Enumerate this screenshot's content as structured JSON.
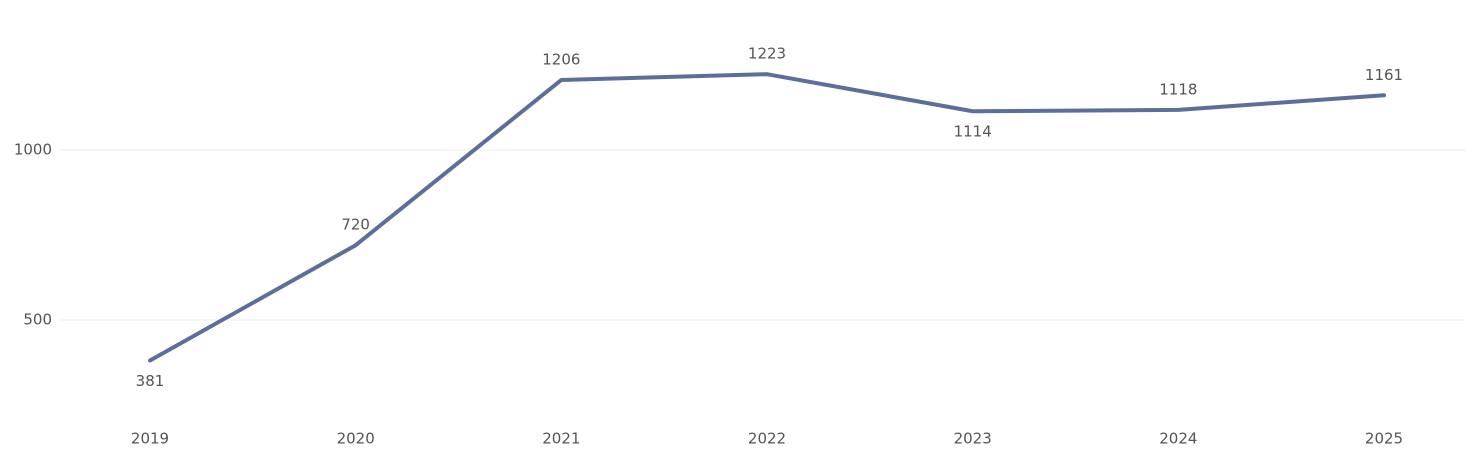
{
  "chart_data": {
    "type": "line",
    "categories": [
      "2019",
      "2020",
      "2021",
      "2022",
      "2023",
      "2024",
      "2025"
    ],
    "series": [
      {
        "color": "#5b6f9a",
        "values": [
          381,
          720,
          1206,
          1223,
          1114,
          1118,
          1161
        ]
      }
    ],
    "ylim": [
      200,
      1400
    ],
    "yticks": [
      500,
      1000
    ],
    "grid": true
  }
}
